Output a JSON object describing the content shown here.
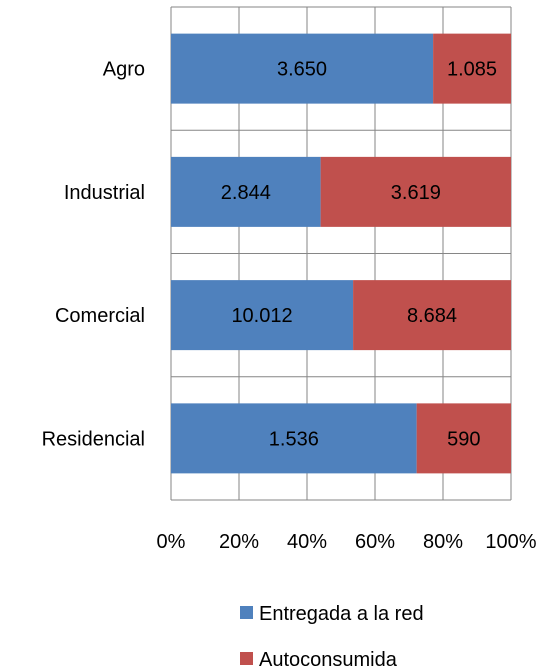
{
  "chart_data": {
    "type": "bar",
    "orientation": "horizontal",
    "stacking": "percent",
    "categories": [
      "Agro",
      "Industrial",
      "Comercial",
      "Residencial"
    ],
    "series": [
      {
        "name": "Entregada a la red",
        "color": "#4F81BD",
        "values": [
          3650,
          2844,
          10012,
          1536
        ],
        "labels": [
          "3.650",
          "2.844",
          "10.012",
          "1.536"
        ]
      },
      {
        "name": "Autoconsumida",
        "color": "#C0504D",
        "values": [
          1085,
          3619,
          8684,
          590
        ],
        "labels": [
          "1.085",
          "3.619",
          "8.684",
          "590"
        ]
      }
    ],
    "xticks": [
      "0%",
      "20%",
      "40%",
      "60%",
      "80%",
      "100%"
    ],
    "xlim": [
      0,
      100
    ],
    "grid": true,
    "legend_position": "bottom"
  }
}
